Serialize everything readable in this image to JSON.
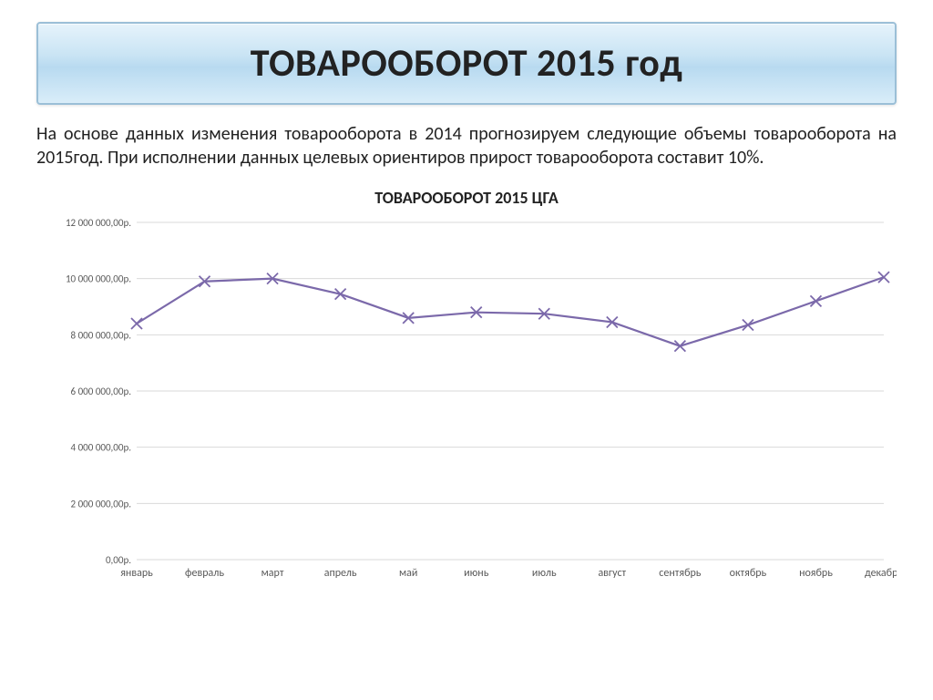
{
  "title": "ТОВАРООБОРОТ 2015 год",
  "body_text": "На основе данных изменения товарооборота в 2014 прогнозируем следующие объемы товарооборота на 2015год.  При исполнении данных целевых ориентиров прирост товарооборота составит 10%.",
  "chart": {
    "type": "line",
    "title": "ТОВАРООБОРОТ 2015 ЦГА",
    "categories": [
      "январь",
      "февраль",
      "март",
      "апрель",
      "май",
      "июнь",
      "июль",
      "август",
      "сентябрь",
      "октябрь",
      "ноябрь",
      "декабрь"
    ],
    "values": [
      8400000,
      9900000,
      10000000,
      9450000,
      8600000,
      8800000,
      8750000,
      8450000,
      7600000,
      8350000,
      9200000,
      10050000
    ],
    "ymin": 0,
    "ymax": 12000000,
    "ytick_step": 2000000,
    "ytick_labels": [
      "0,00р.",
      "2 000 000,00р.",
      "4 000 000,00р.",
      "6 000 000,00р.",
      "8 000 000,00р.",
      "10 000 000,00р.",
      "12 000 000,00р."
    ],
    "line_color": "#7b69aa",
    "marker_style": "x",
    "marker_size": 6,
    "grid_color": "#d9d9d9",
    "background_color": "#ffffff",
    "axis_label_fontsize": 11,
    "title_fontsize": 18,
    "label_color": "#595959"
  },
  "title_box": {
    "border_color": "#9bbfd7",
    "bg_gradient_top": "#e6f3fb",
    "bg_gradient_mid": "#b8daf0",
    "bg_gradient_bottom": "#d9edf9"
  }
}
